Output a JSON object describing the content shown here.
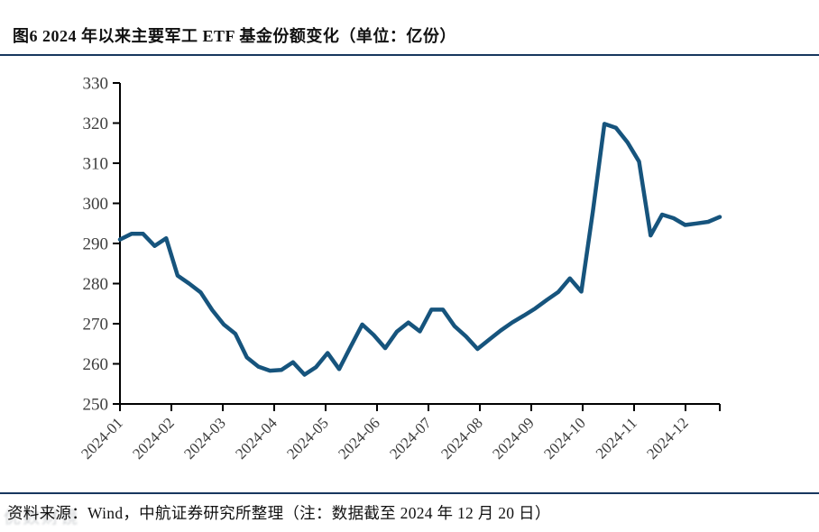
{
  "header": {
    "title": "图6  2024 年以来主要军工 ETF 基金份额变化（单位：亿份）"
  },
  "footer": {
    "source": "资料来源：Wind，中航证券研究所整理（注：数据截至 2024 年 12 月 20 日）"
  },
  "watermark": {
    "text": "优数财镜"
  },
  "colors": {
    "line": "#16547D",
    "rule": "#17375E",
    "axis": "#000000",
    "tick_label": "#3D3D3D"
  },
  "chart_data": {
    "type": "line",
    "title": "2024 年以来主要军工 ETF 基金份额变化",
    "unit_label": "亿份",
    "xlabel": "",
    "ylabel": "",
    "grid": false,
    "legend": false,
    "ylim": [
      250,
      330
    ],
    "y_ticks": [
      250,
      260,
      270,
      280,
      290,
      300,
      310,
      320,
      330
    ],
    "x_tick_labels": [
      "2024-01",
      "2024-02",
      "2024-03",
      "2024-04",
      "2024-05",
      "2024-06",
      "2024-07",
      "2024-08",
      "2024-09",
      "2024-10",
      "2024-11",
      "2024-12"
    ],
    "values": [
      291.0,
      292.4,
      292.4,
      289.4,
      291.3,
      282.0,
      280.0,
      277.8,
      273.4,
      269.8,
      267.5,
      261.6,
      259.3,
      258.3,
      258.5,
      260.4,
      257.3,
      259.2,
      262.7,
      258.7,
      264.3,
      269.8,
      267.2,
      263.9,
      268.0,
      270.3,
      268.1,
      273.5,
      273.5,
      269.4,
      266.8,
      263.7,
      266.0,
      268.3,
      270.3,
      272.0,
      273.8,
      275.9,
      277.9,
      281.3,
      278.0,
      298.0,
      319.8,
      318.8,
      315.2,
      310.4,
      292.0,
      297.2,
      296.3,
      294.6,
      295.0,
      295.4,
      296.6
    ]
  }
}
